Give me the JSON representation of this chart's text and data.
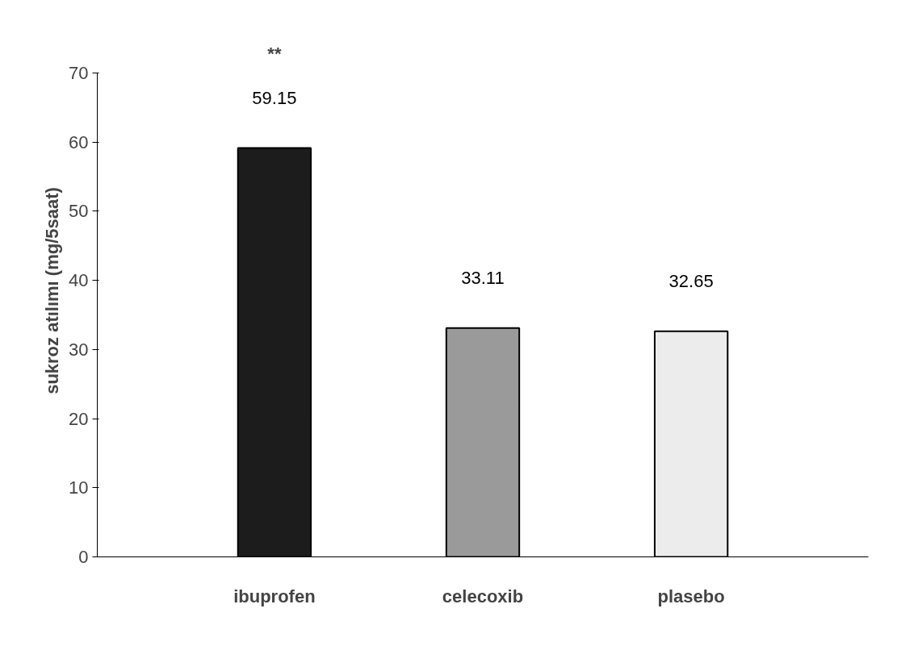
{
  "chart_data": {
    "type": "bar",
    "ylabel": "sukroz atılımı (mg/5saat)",
    "categories": [
      "ibuprofen",
      "celecoxib",
      "plasebo"
    ],
    "values": [
      59.15,
      33.11,
      32.65
    ],
    "colors": [
      "#1c1c1c",
      "#9a9a9a",
      "#ececec"
    ],
    "data_labels": true,
    "annotations": [
      "**"
    ],
    "ylim": [
      0,
      70
    ],
    "yticks": [
      0,
      10,
      20,
      30,
      40,
      50,
      60,
      70
    ],
    "grid": false
  }
}
